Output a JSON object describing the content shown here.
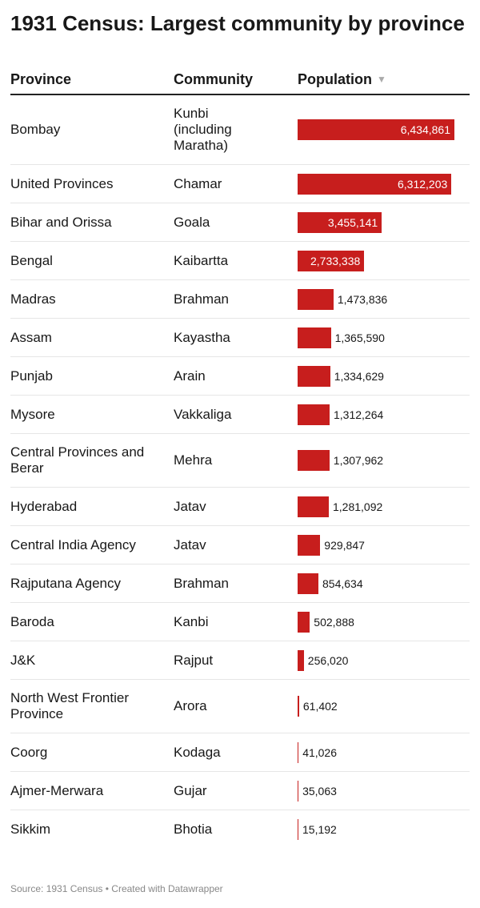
{
  "title": "1931 Census: Largest community by province",
  "columns": {
    "province": "Province",
    "community": "Community",
    "population": "Population"
  },
  "sort_icon": "sort-down-triangle",
  "bar_color": "#c71e1d",
  "footer": "Source: 1931 Census • Created with Datawrapper",
  "chart_data": {
    "type": "table",
    "title": "1931 Census: Largest community by province",
    "headers": [
      "Province",
      "Community",
      "Population"
    ],
    "max": 6434861,
    "rows": [
      {
        "province": "Bombay",
        "community": "Kunbi (including Maratha)",
        "population": 6434861,
        "population_text": "6,434,861"
      },
      {
        "province": "United Provinces",
        "community": "Chamar",
        "population": 6312203,
        "population_text": "6,312,203"
      },
      {
        "province": "Bihar and Orissa",
        "community": "Goala",
        "population": 3455141,
        "population_text": "3,455,141"
      },
      {
        "province": "Bengal",
        "community": "Kaibartta",
        "population": 2733338,
        "population_text": "2,733,338"
      },
      {
        "province": "Madras",
        "community": "Brahman",
        "population": 1473836,
        "population_text": "1,473,836"
      },
      {
        "province": "Assam",
        "community": "Kayastha",
        "population": 1365590,
        "population_text": "1,365,590"
      },
      {
        "province": "Punjab",
        "community": "Arain",
        "population": 1334629,
        "population_text": "1,334,629"
      },
      {
        "province": "Mysore",
        "community": "Vakkaliga",
        "population": 1312264,
        "population_text": "1,312,264"
      },
      {
        "province": "Central Provinces and Berar",
        "community": "Mehra",
        "population": 1307962,
        "population_text": "1,307,962"
      },
      {
        "province": "Hyderabad",
        "community": "Jatav",
        "population": 1281092,
        "population_text": "1,281,092"
      },
      {
        "province": "Central India Agency",
        "community": "Jatav",
        "population": 929847,
        "population_text": "929,847"
      },
      {
        "province": "Rajputana Agency",
        "community": "Brahman",
        "population": 854634,
        "population_text": "854,634"
      },
      {
        "province": "Baroda",
        "community": "Kanbi",
        "population": 502888,
        "population_text": "502,888"
      },
      {
        "province": "J&K",
        "community": "Rajput",
        "population": 256020,
        "population_text": "256,020"
      },
      {
        "province": "North West Frontier Province",
        "community": "Arora",
        "population": 61402,
        "population_text": "61,402"
      },
      {
        "province": "Coorg",
        "community": "Kodaga",
        "population": 41026,
        "population_text": "41,026"
      },
      {
        "province": "Ajmer-Merwara",
        "community": "Gujar",
        "population": 35063,
        "population_text": "35,063"
      },
      {
        "province": "Sikkim",
        "community": "Bhotia",
        "population": 15192,
        "population_text": "15,192"
      }
    ]
  }
}
